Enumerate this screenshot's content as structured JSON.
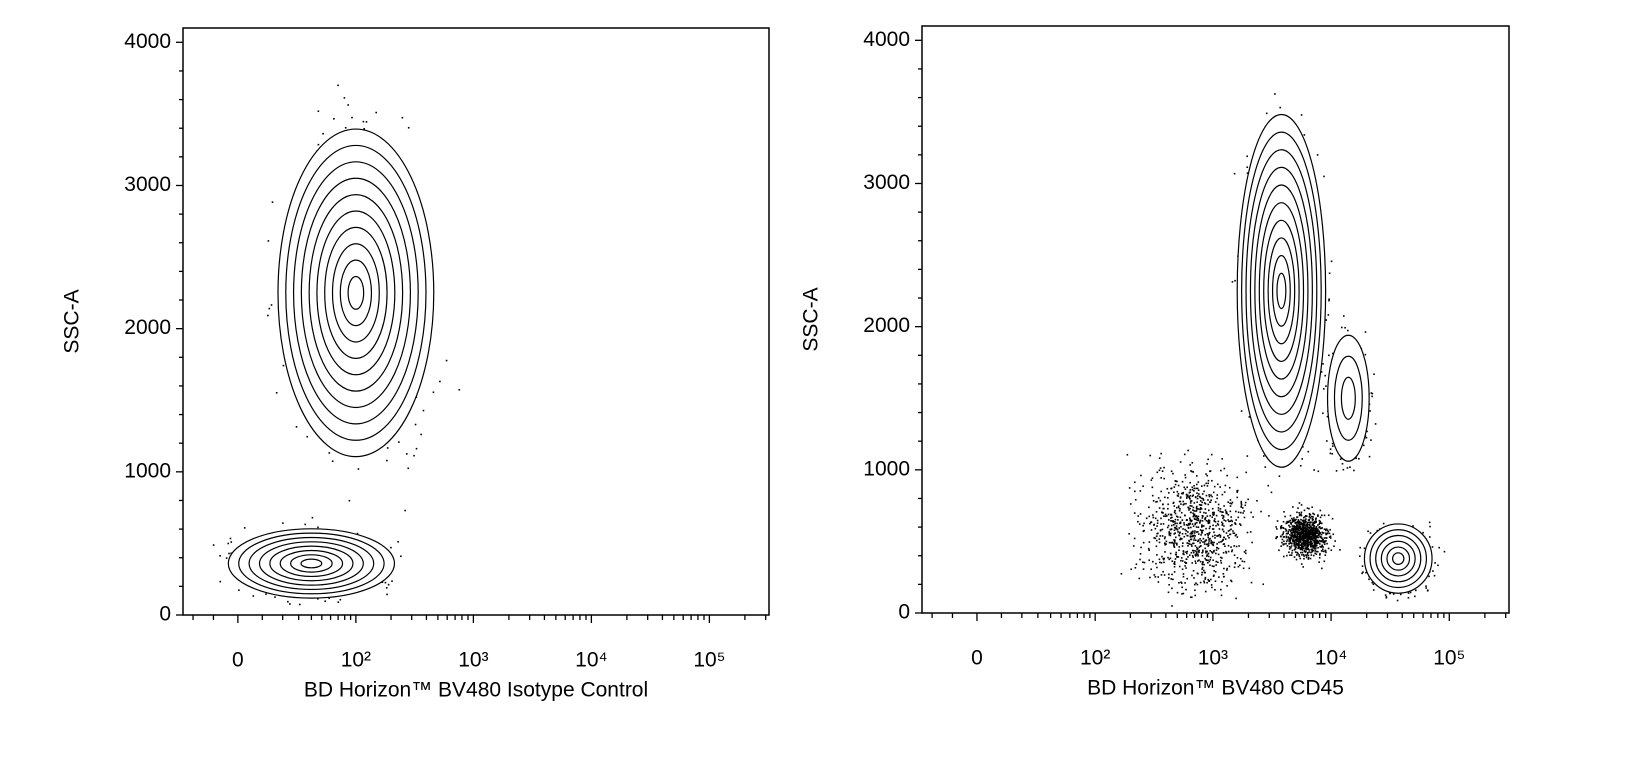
{
  "chart_data": [
    {
      "type": "contour",
      "x_label": "BD Horizon™ BV480 Isotype Control",
      "y_label": "SSC-A",
      "xscale": "biexponential",
      "xlim": [
        -26,
        320000
      ],
      "xticks": [
        {
          "value": 0,
          "label": "0"
        },
        {
          "value": 100,
          "label": "10²"
        },
        {
          "value": 1000,
          "label": "10³"
        },
        {
          "value": 10000,
          "label": "10⁴"
        },
        {
          "value": 100000,
          "label": "10⁵"
        }
      ],
      "xminorticks": [
        -20,
        -10,
        10,
        20,
        30,
        40,
        50,
        60,
        70,
        80,
        90,
        200,
        300,
        400,
        500,
        600,
        700,
        800,
        900,
        2000,
        3000,
        4000,
        5000,
        6000,
        7000,
        8000,
        9000,
        20000,
        30000,
        40000,
        50000,
        60000,
        70000,
        80000,
        90000,
        200000,
        300000
      ],
      "ylim": [
        0,
        4100
      ],
      "yticks": [
        0,
        1000,
        2000,
        3000,
        4000
      ],
      "yminorticks": [
        200,
        400,
        600,
        800,
        1200,
        1400,
        1600,
        1800,
        2200,
        2400,
        2600,
        2800,
        3200,
        3400,
        3600,
        3800
      ],
      "color": "#000000",
      "populations": [
        {
          "x": 100,
          "y": 2250,
          "sx": 0.3,
          "sy": 520,
          "contours": 10
        },
        {
          "x": 40,
          "y": 360,
          "sx": 0.32,
          "sy": 110,
          "contours": 8
        }
      ]
    },
    {
      "type": "contour",
      "x_label": "BD Horizon™ BV480 CD45",
      "y_label": "SSC-A",
      "xscale": "biexponential",
      "xlim": [
        -26,
        320000
      ],
      "xticks": [
        {
          "value": 0,
          "label": "0"
        },
        {
          "value": 100,
          "label": "10²"
        },
        {
          "value": 1000,
          "label": "10³"
        },
        {
          "value": 10000,
          "label": "10⁴"
        },
        {
          "value": 100000,
          "label": "10⁵"
        }
      ],
      "xminorticks": [
        -20,
        -10,
        10,
        20,
        30,
        40,
        50,
        60,
        70,
        80,
        90,
        200,
        300,
        400,
        500,
        600,
        700,
        800,
        900,
        2000,
        3000,
        4000,
        5000,
        6000,
        7000,
        8000,
        9000,
        20000,
        30000,
        40000,
        50000,
        60000,
        70000,
        80000,
        90000,
        200000,
        300000
      ],
      "ylim": [
        0,
        4100
      ],
      "yticks": [
        0,
        1000,
        2000,
        3000,
        4000
      ],
      "yminorticks": [
        200,
        400,
        600,
        800,
        1200,
        1400,
        1600,
        1800,
        2200,
        2400,
        2600,
        2800,
        3200,
        3400,
        3600,
        3800
      ],
      "color": "#000000",
      "populations": [
        {
          "x": 3800,
          "y": 2250,
          "sx": 0.17,
          "sy": 560,
          "contours": 10
        },
        {
          "x": 14000,
          "y": 1500,
          "sx": 0.08,
          "sy": 200,
          "contours": 3
        },
        {
          "x": 37000,
          "y": 380,
          "sx": 0.13,
          "sy": 110,
          "contours": 6
        },
        {
          "x": 700,
          "y": 600,
          "sx": 0.25,
          "sy": 220,
          "contours": 0
        },
        {
          "x": 6000,
          "y": 550,
          "sx": 0.1,
          "sy": 80,
          "contours": 0
        }
      ]
    }
  ]
}
